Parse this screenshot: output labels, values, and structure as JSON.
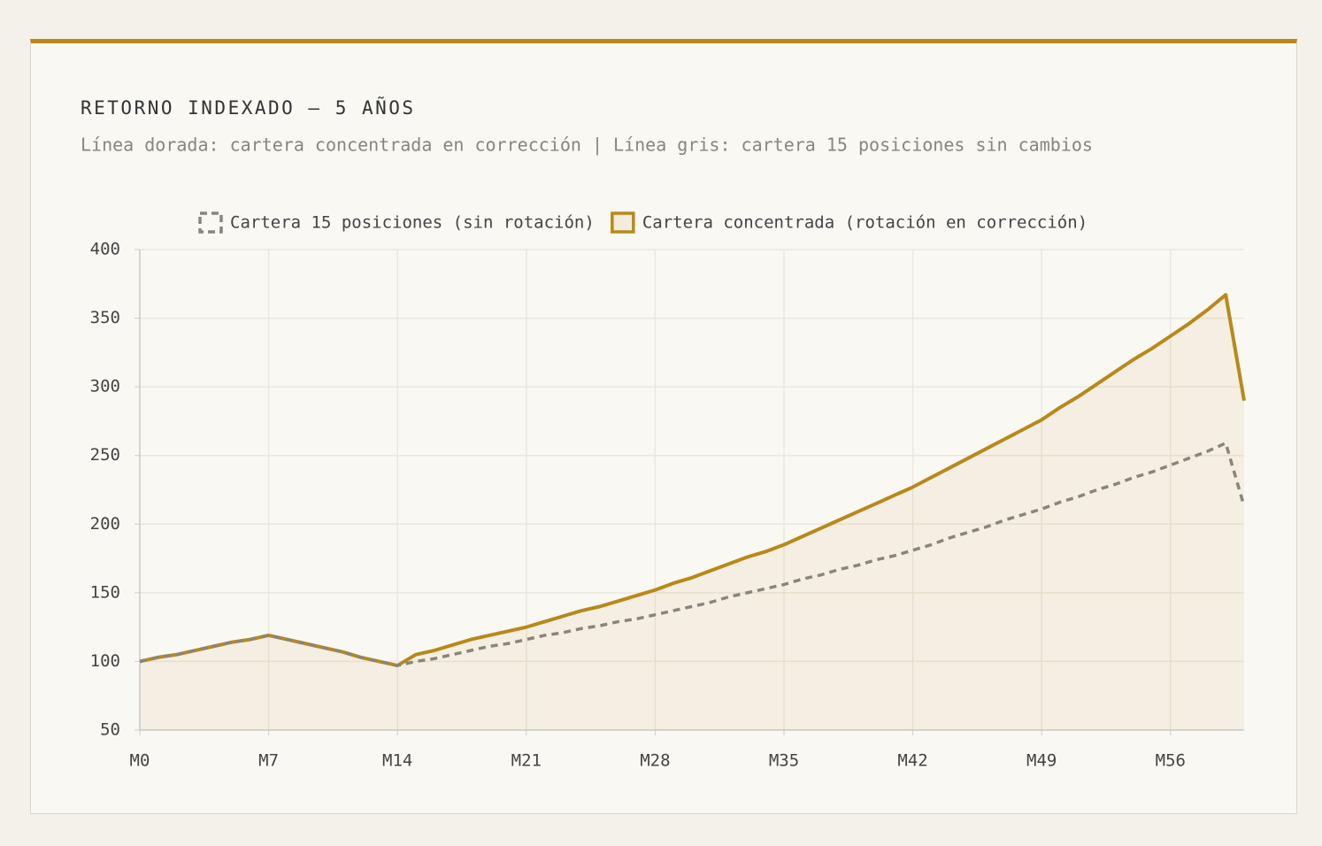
{
  "chart_data": {
    "type": "line",
    "title": "RETORNO INDEXADO — 5 AÑOS",
    "subtitle": "Línea dorada: cartera concentrada en corrección | Línea gris: cartera 15 posiciones sin cambios",
    "categories": [
      "M0",
      null,
      null,
      null,
      null,
      null,
      null,
      "M7",
      null,
      null,
      null,
      null,
      null,
      null,
      "M14",
      null,
      null,
      null,
      null,
      null,
      null,
      "M21",
      null,
      null,
      null,
      null,
      null,
      null,
      "M28",
      null,
      null,
      null,
      null,
      null,
      null,
      "M35",
      null,
      null,
      null,
      null,
      null,
      null,
      "M42",
      null,
      null,
      null,
      null,
      null,
      null,
      "M49",
      null,
      null,
      null,
      null,
      null,
      null,
      "M56",
      null,
      null,
      null,
      null
    ],
    "series": [
      {
        "name": "Cartera 15 posiciones (sin rotación)",
        "color": "#8a857c",
        "style": "dashed",
        "fill": false,
        "values": [
          100,
          103,
          105,
          108,
          111,
          114,
          116,
          119,
          116,
          113,
          110,
          107,
          103,
          100,
          97,
          100,
          102,
          105,
          108,
          111,
          113,
          116,
          119,
          121,
          124,
          126,
          129,
          131,
          134,
          137,
          140,
          143,
          147,
          150,
          153,
          156,
          160,
          163,
          167,
          170,
          174,
          177,
          181,
          185,
          190,
          194,
          198,
          203,
          207,
          211,
          216,
          220,
          225,
          229,
          234,
          238,
          243,
          248,
          253,
          259,
          213
        ]
      },
      {
        "name": "Cartera concentrada (rotación en corrección)",
        "color": "#b8891a",
        "style": "solid",
        "fill": true,
        "values": [
          100,
          103,
          105,
          108,
          111,
          114,
          116,
          119,
          116,
          113,
          110,
          107,
          103,
          100,
          97,
          105,
          108,
          112,
          116,
          119,
          122,
          125,
          129,
          133,
          137,
          140,
          144,
          148,
          152,
          157,
          161,
          166,
          171,
          176,
          180,
          185,
          191,
          197,
          203,
          209,
          215,
          221,
          227,
          234,
          241,
          248,
          255,
          262,
          269,
          276,
          285,
          293,
          302,
          311,
          320,
          328,
          337,
          346,
          356,
          367,
          290
        ]
      }
    ],
    "ylim": [
      50,
      400
    ],
    "yticks": [
      50,
      100,
      150,
      200,
      250,
      300,
      350,
      400
    ],
    "grid": true,
    "legend": "top"
  }
}
